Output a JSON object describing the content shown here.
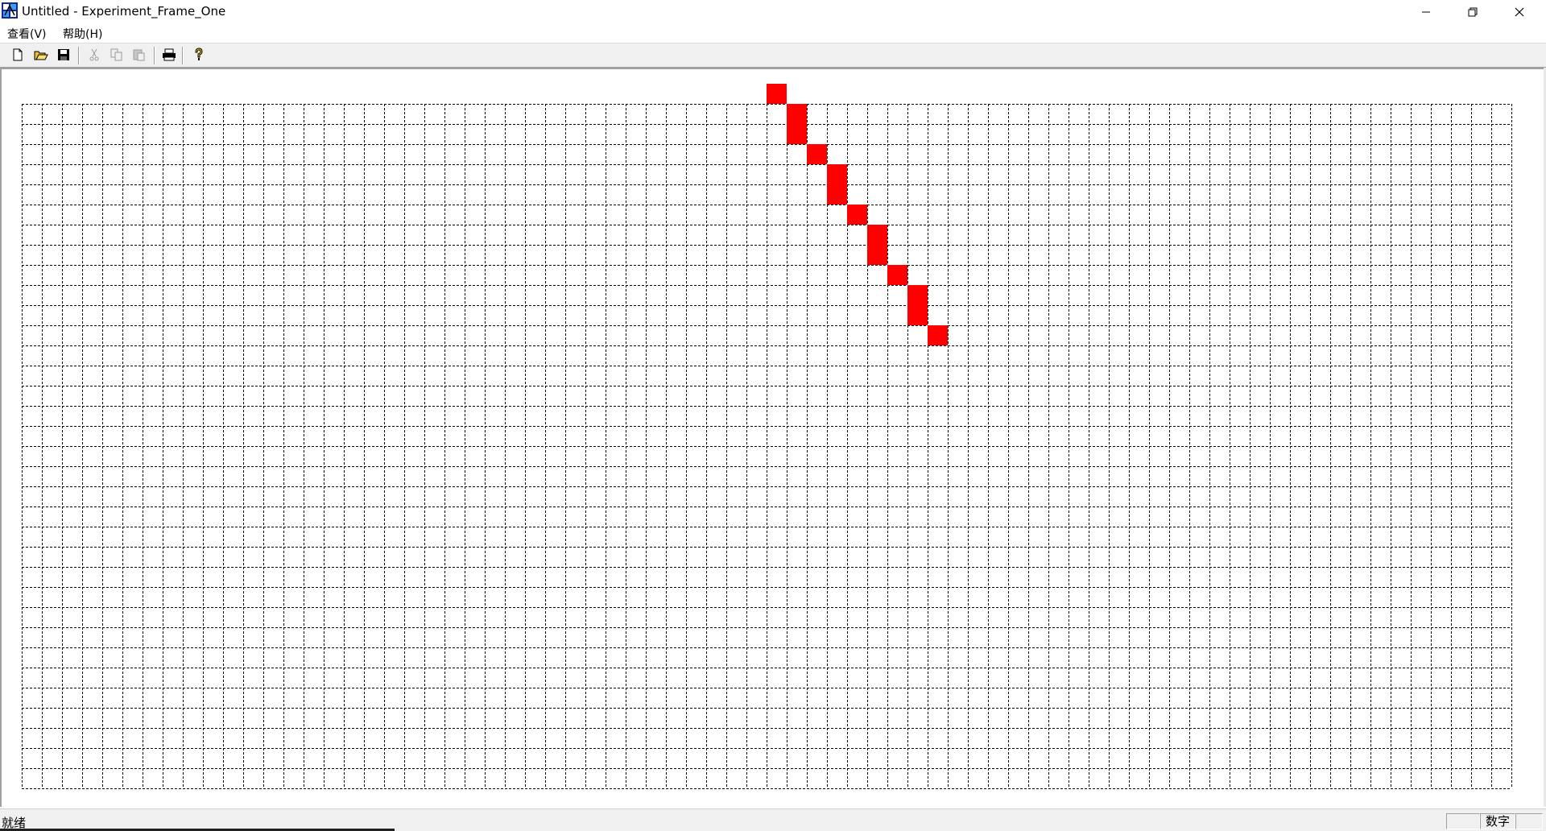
{
  "window": {
    "title": "Untitled - Experiment_Frame_One",
    "icon": "mfc-app-icon",
    "controls": [
      "minimize-icon",
      "restore-icon",
      "close-icon"
    ]
  },
  "menu": {
    "items": [
      {
        "label": "查看(V)"
      },
      {
        "label": "帮助(H)"
      }
    ]
  },
  "toolbar": {
    "buttons": [
      {
        "name": "new-icon",
        "enabled": true
      },
      {
        "name": "open-icon",
        "enabled": true
      },
      {
        "name": "save-icon",
        "enabled": true
      },
      {
        "name": "cut-icon",
        "enabled": false
      },
      {
        "name": "copy-icon",
        "enabled": false
      },
      {
        "name": "paste-icon",
        "enabled": false
      },
      {
        "name": "print-icon",
        "enabled": true
      },
      {
        "name": "help-icon",
        "enabled": true
      }
    ]
  },
  "canvas": {
    "grid": {
      "columns": 74,
      "rows": 34,
      "line_style": "dashed",
      "line_color": "#000000"
    },
    "fill_color": "#ff0000",
    "filled_cells": [
      [
        37,
        -1
      ],
      [
        38,
        0
      ],
      [
        38,
        1
      ],
      [
        39,
        2
      ],
      [
        40,
        3
      ],
      [
        40,
        4
      ],
      [
        41,
        5
      ],
      [
        42,
        6
      ],
      [
        42,
        7
      ],
      [
        43,
        8
      ],
      [
        44,
        9
      ],
      [
        44,
        10
      ],
      [
        45,
        11
      ]
    ]
  },
  "status": {
    "text": "就绪",
    "indicator": "数字"
  }
}
